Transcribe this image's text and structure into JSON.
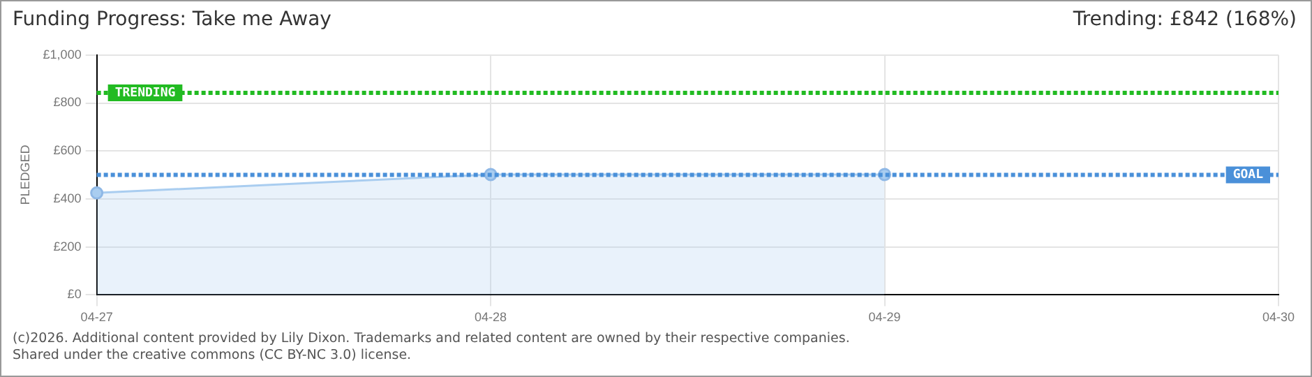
{
  "chart_data": {
    "type": "area",
    "title": "Funding Progress: Take me Away",
    "subtitle": "Trending: £842 (168%)",
    "ylabel": "PLEDGED",
    "categories": [
      "04-27",
      "04-28",
      "04-29",
      "04-30"
    ],
    "series": [
      {
        "color": "#a9cdf0",
        "values": [
          425,
          502,
          502,
          null
        ]
      }
    ],
    "ylim": [
      0,
      1000
    ],
    "yticks": [
      {
        "value": 0,
        "label": "£0"
      },
      {
        "value": 200,
        "label": "£200"
      },
      {
        "value": 400,
        "label": "£400"
      },
      {
        "value": 600,
        "label": "£600"
      },
      {
        "value": 800,
        "label": "£800"
      },
      {
        "value": 1000,
        "label": "£1,000"
      }
    ],
    "grid": true,
    "marker": "circle",
    "ref_lines": [
      {
        "axis": "y",
        "value": 842,
        "label": "TRENDING",
        "color": "#22bb22",
        "line_style": "dotted"
      },
      {
        "axis": "y",
        "value": 500,
        "label": "GOAL",
        "color": "#4a90d9",
        "line_style": "dotted"
      }
    ],
    "annotations": [
      "(c)2026. Additional content provided by Lily Dixon. Trademarks and related content are owned by their respective companies.",
      "Shared under the creative commons (CC BY-NC 3.0) license."
    ]
  }
}
